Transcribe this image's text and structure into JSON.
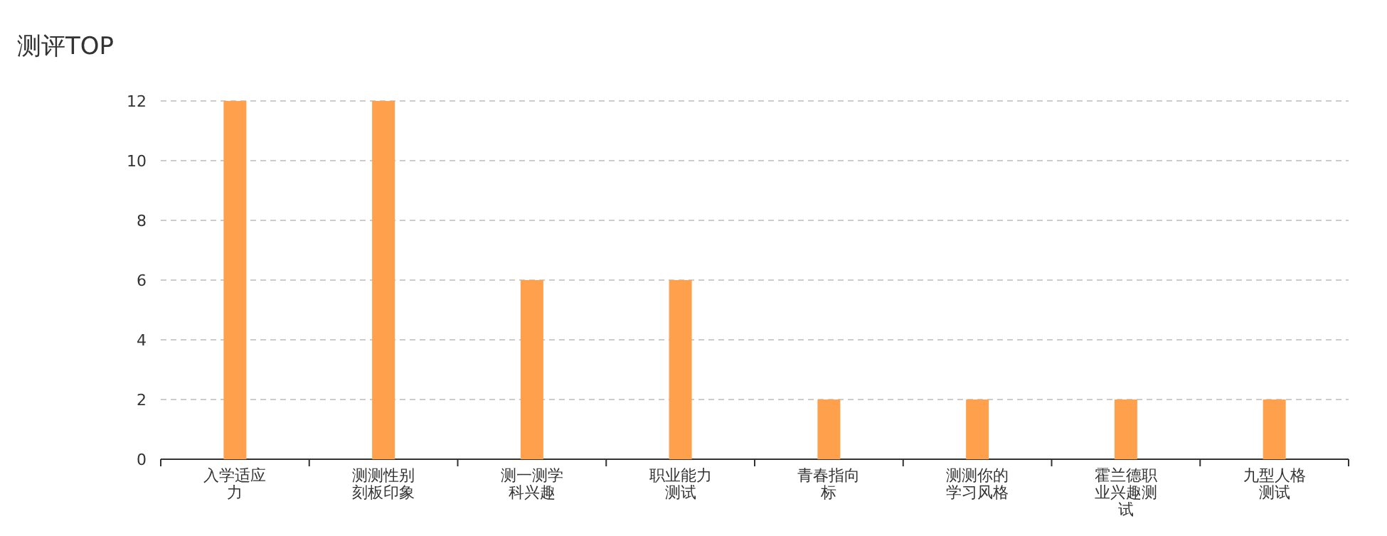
{
  "chart_data": {
    "type": "bar",
    "title": "测评TOP",
    "categories": [
      "入学适应力",
      "测测性别刻板印象",
      "测一测学科兴趣",
      "职业能力测试",
      "青春指向标",
      "测测你的学习风格",
      "霍兰德职业兴趣测试",
      "九型人格测试"
    ],
    "values": [
      12,
      12,
      6,
      6,
      2,
      2,
      2,
      2
    ],
    "color": "#ffa04d",
    "ylim": [
      0,
      12
    ],
    "yticks": [
      0,
      2,
      4,
      6,
      8,
      10,
      12
    ],
    "grid": "y"
  }
}
